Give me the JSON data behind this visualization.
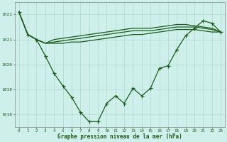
{
  "title": "Graphe pression niveau de la mer (hPa)",
  "background_color": "#cff0ea",
  "grid_color": "#aad8d0",
  "line_color": "#1a5c1a",
  "x_ticks": [
    0,
    1,
    2,
    3,
    4,
    5,
    6,
    7,
    8,
    9,
    10,
    11,
    12,
    13,
    14,
    15,
    16,
    17,
    18,
    19,
    20,
    21,
    22,
    23
  ],
  "ylim": [
    1017.5,
    1022.5
  ],
  "yticks": [
    1018,
    1019,
    1020,
    1021,
    1022
  ],
  "series1": [
    1022.1,
    1021.2,
    1021.0,
    1020.85,
    1020.85,
    1020.85,
    1020.9,
    1020.9,
    1020.95,
    1021.0,
    1021.05,
    1021.1,
    1021.15,
    1021.2,
    1021.2,
    1021.25,
    1021.3,
    1021.35,
    1021.4,
    1021.4,
    1021.4,
    1021.35,
    1021.3,
    1021.3
  ],
  "series2": [
    1022.1,
    1021.2,
    1021.0,
    1020.85,
    1020.9,
    1020.95,
    1021.0,
    1021.05,
    1021.1,
    1021.15,
    1021.2,
    1021.25,
    1021.3,
    1021.35,
    1021.35,
    1021.35,
    1021.4,
    1021.45,
    1021.5,
    1021.5,
    1021.5,
    1021.45,
    1021.4,
    1021.3
  ],
  "series3": [
    1022.1,
    1021.2,
    1021.0,
    1020.85,
    1021.0,
    1021.05,
    1021.1,
    1021.15,
    1021.2,
    1021.25,
    1021.3,
    1021.35,
    1021.4,
    1021.45,
    1021.45,
    1021.45,
    1021.5,
    1021.55,
    1021.6,
    1021.6,
    1021.55,
    1021.5,
    1021.45,
    1021.3
  ],
  "main_series": [
    1022.1,
    1021.2,
    1021.0,
    1020.35,
    1019.65,
    1019.15,
    1018.7,
    1018.1,
    1017.72,
    1017.72,
    1018.45,
    1018.75,
    1018.45,
    1019.05,
    1018.75,
    1019.05,
    1019.85,
    1019.95,
    1020.6,
    1021.15,
    1021.45,
    1021.75,
    1021.65,
    1021.3
  ]
}
